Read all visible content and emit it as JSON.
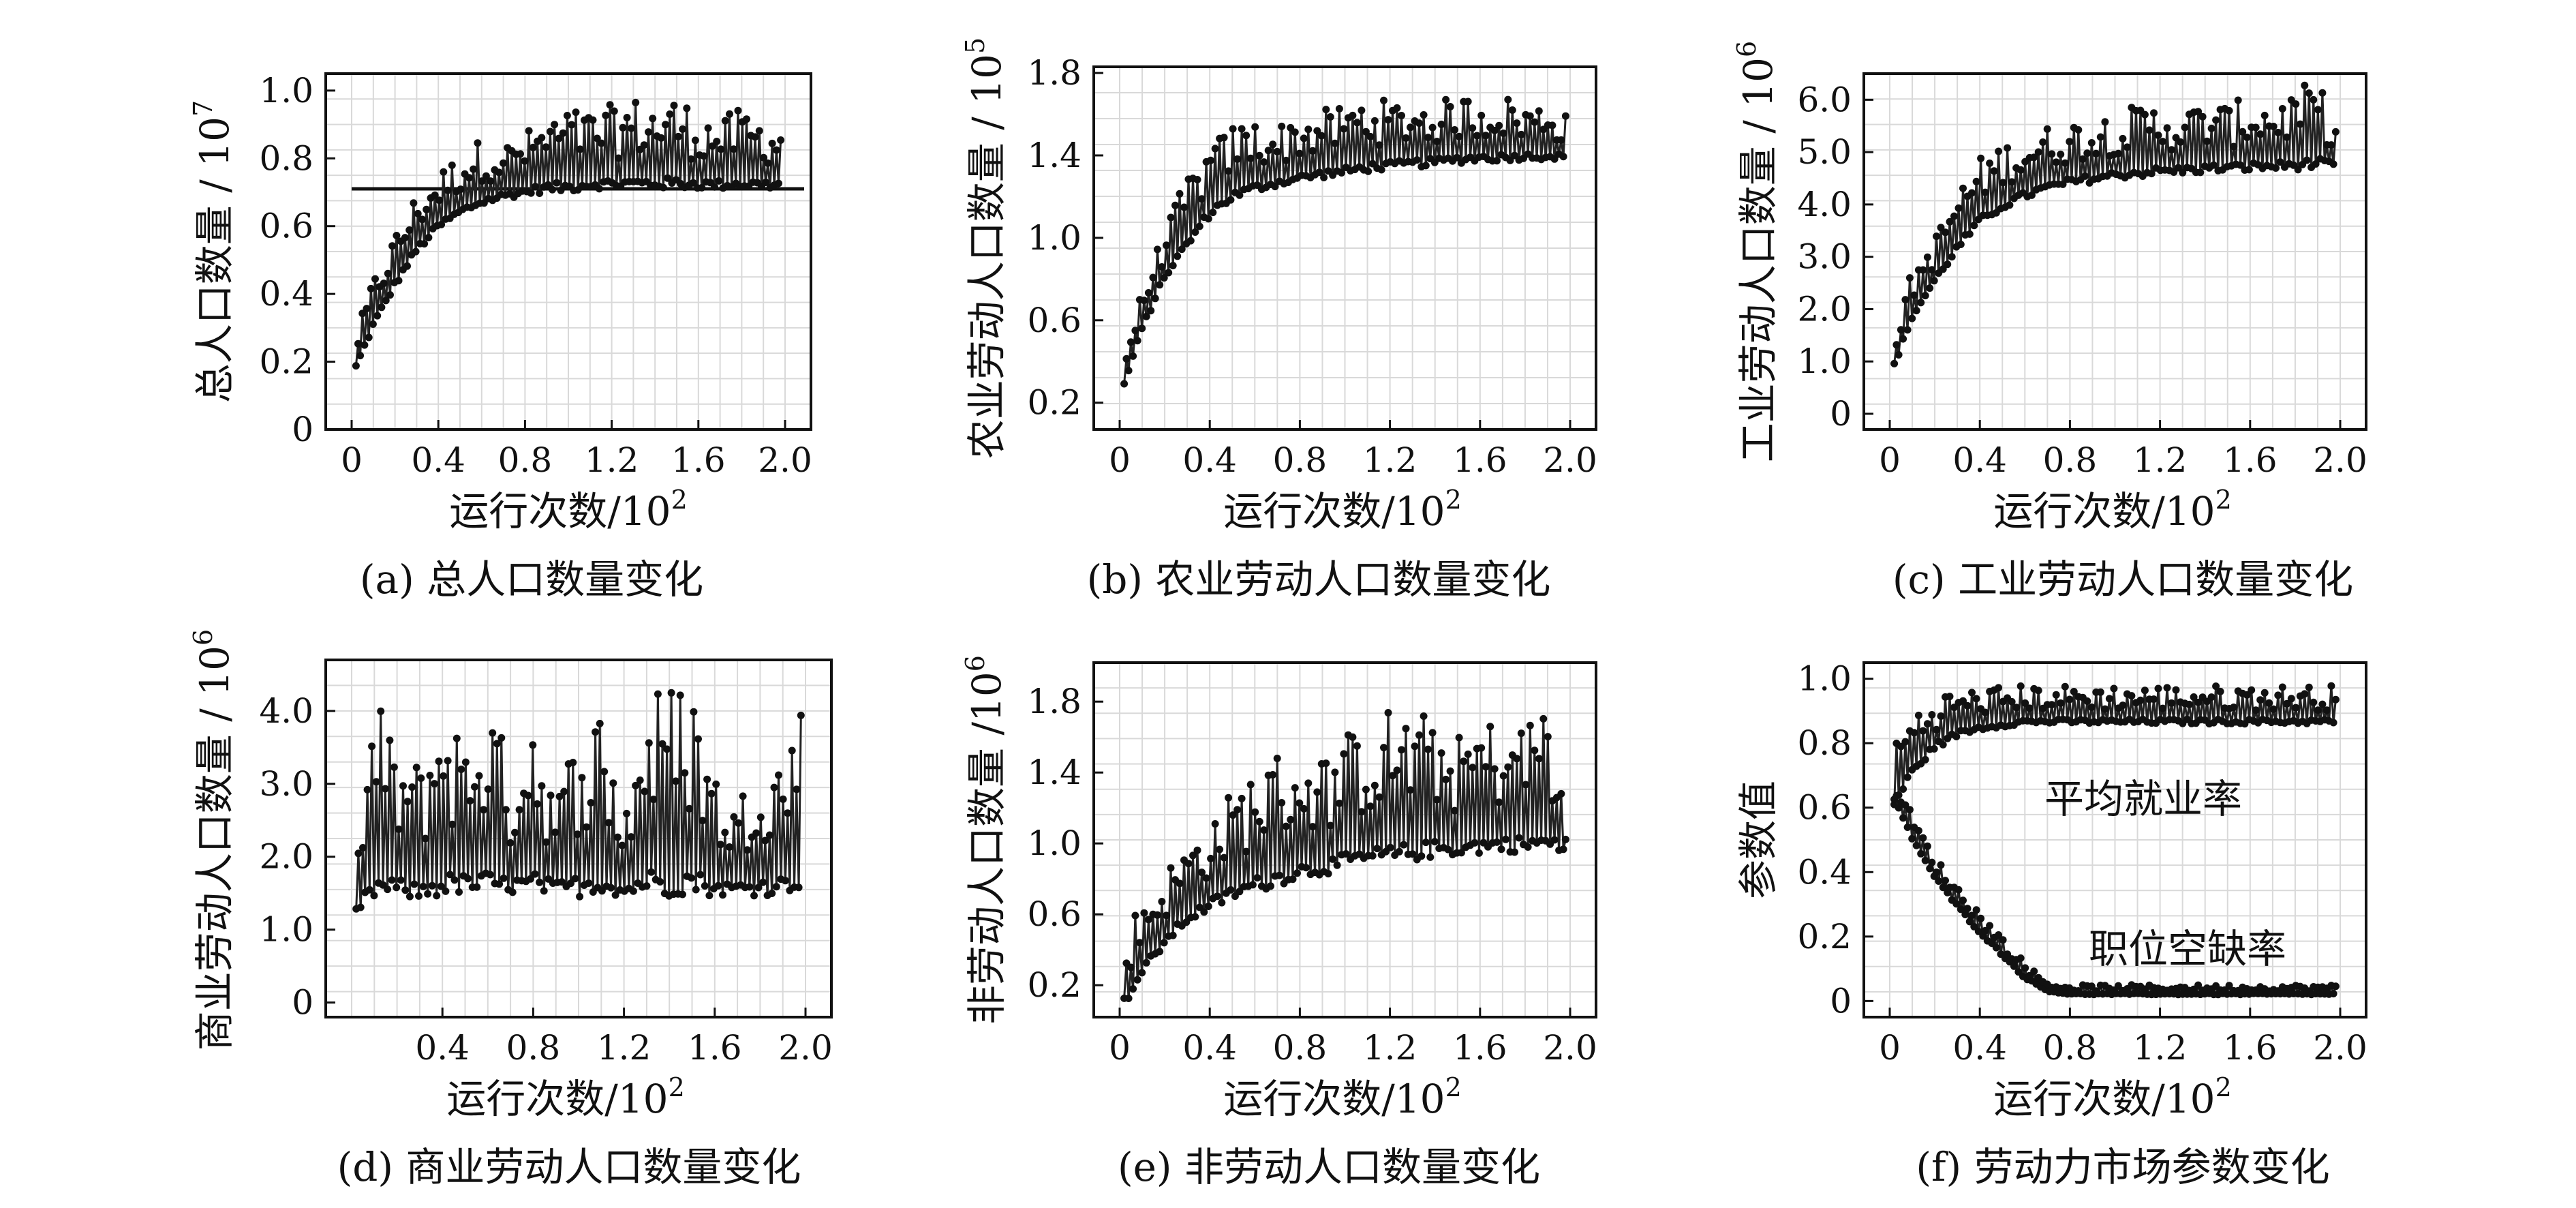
{
  "panels": [
    {
      "id": "a",
      "caption": "(a) 总人口数量变化",
      "ylabel": "总人口数量 / 10",
      "yexp": "7",
      "xlabel": "运行次数/10",
      "xexp": "2",
      "xticks": [
        "0",
        "0.4",
        "0.8",
        "1.2",
        "1.6",
        "2.0"
      ],
      "yticks": [
        "0",
        "0.2",
        "0.4",
        "0.6",
        "0.8",
        "1.0"
      ]
    },
    {
      "id": "b",
      "caption": "(b) 农业劳动人口数量变化",
      "ylabel": "农业劳动人口数量 / 10",
      "yexp": "5",
      "xlabel": "运行次数/10",
      "xexp": "2",
      "xticks": [
        "0",
        "0.4",
        "0.8",
        "1.2",
        "1.6",
        "2.0"
      ],
      "yticks": [
        "0.2",
        "0.6",
        "1.0",
        "1.4",
        "1.8"
      ]
    },
    {
      "id": "c",
      "caption": "(c) 工业劳动人口数量变化",
      "ylabel": "工业劳动人口数量 / 10",
      "yexp": "6",
      "xlabel": "运行次数/10",
      "xexp": "2",
      "xticks": [
        "0",
        "0.4",
        "0.8",
        "1.2",
        "1.6",
        "2.0"
      ],
      "yticks": [
        "0",
        "1.0",
        "2.0",
        "3.0",
        "4.0",
        "5.0",
        "6.0"
      ]
    },
    {
      "id": "d",
      "caption": "(d) 商业劳动人口数量变化",
      "ylabel": "商业劳动人口数量 / 10",
      "yexp": "6",
      "xlabel": "运行次数/10",
      "xexp": "2",
      "xticks": [
        "0.4",
        "0.8",
        "1.2",
        "1.6",
        "2.0"
      ],
      "yticks": [
        "0",
        "1.0",
        "2.0",
        "3.0",
        "4.0"
      ]
    },
    {
      "id": "e",
      "caption": "(e) 非劳动人口数量变化",
      "ylabel": "非劳动人口数量 /10",
      "yexp": "6",
      "xlabel": "运行次数/10",
      "xexp": "2",
      "xticks": [
        "0",
        "0.4",
        "0.8",
        "1.2",
        "1.6",
        "2.0"
      ],
      "yticks": [
        "0.2",
        "0.6",
        "1.0",
        "1.4",
        "1.8"
      ]
    },
    {
      "id": "f",
      "caption": "(f) 劳动力市场参数变化",
      "ylabel": "参数值",
      "yexp": "",
      "xlabel": "运行次数/10",
      "xexp": "2",
      "xticks": [
        "0",
        "0.4",
        "0.8",
        "1.2",
        "1.6",
        "2.0"
      ],
      "yticks": [
        "0",
        "0.2",
        "0.4",
        "0.6",
        "0.8",
        "1.0"
      ],
      "annotations": [
        "平均就业率",
        "职位空缺率"
      ]
    }
  ],
  "chart_data": [
    {
      "type": "line",
      "panel": "a",
      "title": "",
      "xlabel": "运行次数/10^2",
      "ylabel": "总人口数量 / 10^7",
      "xlim": [
        0,
        2.0
      ],
      "ylim": [
        0,
        1.05
      ],
      "reference_line_y": 0.71,
      "x": [
        0.02,
        0.1,
        0.2,
        0.3,
        0.4,
        0.5,
        0.6,
        0.7,
        0.8,
        0.9,
        1.0,
        1.1,
        1.2,
        1.3,
        1.4,
        1.5,
        1.6,
        1.7,
        1.8,
        1.9,
        1.98
      ],
      "series": [
        {
          "values_lower": [
            0.18,
            0.3,
            0.42,
            0.52,
            0.59,
            0.63,
            0.66,
            0.68,
            0.69,
            0.7,
            0.7,
            0.71,
            0.71,
            0.71,
            0.71,
            0.71,
            0.71,
            0.71,
            0.71,
            0.71,
            0.71
          ],
          "values_upper": [
            0.28,
            0.45,
            0.58,
            0.7,
            0.76,
            0.82,
            0.86,
            0.84,
            0.88,
            0.92,
            0.95,
            0.94,
            0.96,
            0.98,
            0.97,
            0.99,
            0.94,
            0.92,
            0.95,
            0.92,
            0.9
          ]
        }
      ]
    },
    {
      "type": "line",
      "panel": "b",
      "title": "",
      "xlabel": "运行次数/10^2",
      "ylabel": "农业劳动人口数量 / 10^5",
      "xlim": [
        0,
        2.0
      ],
      "ylim": [
        0.07,
        1.83
      ],
      "x": [
        0.02,
        0.1,
        0.2,
        0.3,
        0.4,
        0.5,
        0.6,
        0.7,
        0.8,
        0.9,
        1.0,
        1.1,
        1.2,
        1.3,
        1.4,
        1.5,
        1.6,
        1.7,
        1.8,
        1.9,
        1.98
      ],
      "series": [
        {
          "values_lower": [
            0.28,
            0.55,
            0.8,
            0.95,
            1.1,
            1.18,
            1.22,
            1.25,
            1.27,
            1.29,
            1.3,
            1.32,
            1.33,
            1.34,
            1.35,
            1.36,
            1.37,
            1.37,
            1.38,
            1.38,
            1.38
          ],
          "values_upper": [
            0.45,
            0.75,
            1.05,
            1.3,
            1.45,
            1.55,
            1.58,
            1.55,
            1.6,
            1.62,
            1.65,
            1.7,
            1.66,
            1.68,
            1.65,
            1.7,
            1.68,
            1.7,
            1.65,
            1.66,
            1.6
          ]
        }
      ]
    },
    {
      "type": "line",
      "panel": "c",
      "title": "",
      "xlabel": "运行次数/10^2",
      "ylabel": "工业劳动人口数量 / 10^6",
      "xlim": [
        0,
        2.0
      ],
      "ylim": [
        -0.3,
        6.5
      ],
      "x": [
        0.02,
        0.1,
        0.2,
        0.3,
        0.4,
        0.5,
        0.6,
        0.7,
        0.8,
        0.9,
        1.0,
        1.1,
        1.2,
        1.3,
        1.4,
        1.5,
        1.6,
        1.7,
        1.8,
        1.9,
        1.98
      ],
      "series": [
        {
          "values_lower": [
            0.9,
            1.8,
            2.5,
            3.1,
            3.6,
            3.9,
            4.1,
            4.25,
            4.35,
            4.42,
            4.48,
            4.52,
            4.55,
            4.58,
            4.6,
            4.62,
            4.63,
            4.65,
            4.66,
            4.68,
            4.7
          ],
          "values_upper": [
            1.5,
            2.8,
            3.4,
            4.3,
            4.9,
            5.2,
            5.3,
            5.5,
            5.6,
            5.7,
            5.8,
            5.9,
            5.95,
            5.8,
            6.0,
            5.9,
            6.1,
            6.0,
            6.2,
            6.4,
            5.5
          ]
        }
      ]
    },
    {
      "type": "line",
      "panel": "d",
      "title": "",
      "xlabel": "运行次数/10^2",
      "ylabel": "商业劳动人口数量 / 10^6",
      "xlim": [
        0,
        2.0
      ],
      "ylim": [
        -0.2,
        4.7
      ],
      "x": [
        0.02,
        0.1,
        0.2,
        0.3,
        0.4,
        0.5,
        0.6,
        0.7,
        0.8,
        0.9,
        1.0,
        1.1,
        1.2,
        1.3,
        1.4,
        1.5,
        1.6,
        1.7,
        1.8,
        1.9,
        1.98
      ],
      "series": [
        {
          "values_lower": [
            1.2,
            1.4,
            1.45,
            1.4,
            1.45,
            1.5,
            1.45,
            1.5,
            1.45,
            1.5,
            1.45,
            1.5,
            1.45,
            1.5,
            1.45,
            1.5,
            1.45,
            1.5,
            1.45,
            1.5,
            1.55
          ],
          "values_upper": [
            2.0,
            4.3,
            3.5,
            3.3,
            4.3,
            3.6,
            4.4,
            3.2,
            4.3,
            2.8,
            3.9,
            4.1,
            2.7,
            4.3,
            4.4,
            4.5,
            3.2,
            2.7,
            3.7,
            3.4,
            4.3
          ]
        }
      ]
    },
    {
      "type": "line",
      "panel": "e",
      "title": "",
      "xlabel": "运行次数/10^2",
      "ylabel": "非劳动人口数量 /10^6",
      "xlim": [
        0,
        2.0
      ],
      "ylim": [
        0.02,
        2.02
      ],
      "x": [
        0.02,
        0.1,
        0.2,
        0.3,
        0.4,
        0.5,
        0.6,
        0.7,
        0.8,
        0.9,
        1.0,
        1.1,
        1.2,
        1.3,
        1.4,
        1.5,
        1.6,
        1.7,
        1.8,
        1.9,
        1.98
      ],
      "series": [
        {
          "values_lower": [
            0.08,
            0.25,
            0.42,
            0.55,
            0.62,
            0.68,
            0.72,
            0.76,
            0.8,
            0.82,
            0.85,
            0.87,
            0.88,
            0.9,
            0.92,
            0.93,
            0.94,
            0.95,
            0.95,
            0.95,
            0.95
          ],
          "values_upper": [
            0.5,
            0.7,
            0.85,
            1.0,
            1.15,
            1.3,
            1.45,
            1.52,
            1.55,
            1.5,
            1.62,
            1.7,
            1.78,
            1.75,
            1.72,
            1.6,
            1.72,
            1.68,
            1.7,
            1.88,
            1.1
          ]
        }
      ]
    },
    {
      "type": "line",
      "panel": "f",
      "title": "",
      "xlabel": "运行次数/10^2",
      "ylabel": "参数值",
      "xlim": [
        0,
        2.0
      ],
      "ylim": [
        -0.05,
        1.05
      ],
      "x": [
        0.02,
        0.1,
        0.2,
        0.3,
        0.4,
        0.5,
        0.6,
        0.7,
        0.8,
        0.9,
        1.0,
        1.1,
        1.2,
        1.3,
        1.4,
        1.5,
        1.6,
        1.7,
        1.8,
        1.9,
        1.98
      ],
      "series": [
        {
          "name": "平均就业率",
          "values_lower": [
            0.6,
            0.7,
            0.78,
            0.82,
            0.84,
            0.85,
            0.86,
            0.86,
            0.86,
            0.86,
            0.86,
            0.86,
            0.86,
            0.86,
            0.86,
            0.86,
            0.86,
            0.86,
            0.86,
            0.86,
            0.86
          ],
          "values_upper": [
            0.82,
            0.9,
            0.95,
            0.97,
            0.97,
            0.98,
            0.98,
            0.98,
            0.98,
            0.98,
            0.98,
            0.98,
            0.98,
            0.98,
            0.98,
            0.98,
            0.98,
            0.98,
            0.98,
            0.98,
            0.98
          ]
        },
        {
          "name": "职位空缺率",
          "values_lower": [
            0.62,
            0.5,
            0.38,
            0.29,
            0.21,
            0.14,
            0.07,
            0.03,
            0.02,
            0.02,
            0.02,
            0.02,
            0.02,
            0.02,
            0.02,
            0.02,
            0.02,
            0.02,
            0.02,
            0.02,
            0.02
          ],
          "values_upper": [
            0.7,
            0.58,
            0.45,
            0.36,
            0.28,
            0.2,
            0.12,
            0.06,
            0.05,
            0.05,
            0.05,
            0.05,
            0.05,
            0.05,
            0.05,
            0.05,
            0.05,
            0.05,
            0.05,
            0.05,
            0.05
          ]
        }
      ]
    }
  ]
}
